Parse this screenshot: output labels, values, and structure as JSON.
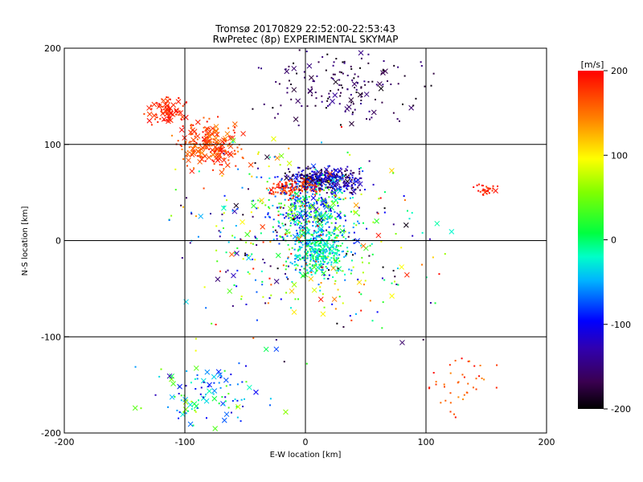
{
  "chart_data": {
    "type": "scatter",
    "title": "Tromsø 20170829 22:52:00-22:53:43",
    "subtitle": "RwPretec (8p) EXPERIMENTAL SKYMAP",
    "xlabel": "E-W location [km]",
    "ylabel": "N-S location [km]",
    "xlim": [
      -200,
      200
    ],
    "ylim": [
      -200,
      200
    ],
    "xticks": [
      "-200",
      "-100",
      "0",
      "100",
      "200"
    ],
    "yticks": [
      "-200",
      "-100",
      "0",
      "100",
      "200"
    ],
    "grid": true,
    "marker_types": [
      "small dot",
      "cross"
    ],
    "colorbar": {
      "label": "[m/s]",
      "range": [
        -200,
        200
      ],
      "ticks": [
        "200",
        "100",
        "0",
        "-100",
        "-200"
      ],
      "colormap": "rainbow (black-purple-blue-cyan-green-yellow-orange-red)"
    },
    "clusters": [
      {
        "center": [
          15,
          63
        ],
        "spread": [
          25,
          10
        ],
        "count": 420,
        "vmin": -200,
        "vmax": -80,
        "cross_fraction": 0.08
      },
      {
        "center": [
          -10,
          55
        ],
        "spread": [
          15,
          8
        ],
        "count": 120,
        "vmin": 150,
        "vmax": 200,
        "cross_fraction": 0.05
      },
      {
        "center": [
          5,
          30
        ],
        "spread": [
          30,
          25
        ],
        "count": 380,
        "vmin": -130,
        "vmax": 60,
        "cross_fraction": 0.06
      },
      {
        "center": [
          10,
          -10
        ],
        "spread": [
          20,
          20
        ],
        "count": 360,
        "vmin": -70,
        "vmax": 30,
        "cross_fraction": 0.07
      },
      {
        "center": [
          -80,
          100
        ],
        "spread": [
          22,
          20
        ],
        "count": 220,
        "vmin": 140,
        "vmax": 200,
        "cross_fraction": 0.3
      },
      {
        "center": [
          -115,
          135
        ],
        "spread": [
          12,
          12
        ],
        "count": 90,
        "vmin": 170,
        "vmax": 200,
        "cross_fraction": 0.35
      },
      {
        "center": [
          30,
          160
        ],
        "spread": [
          50,
          30
        ],
        "count": 160,
        "vmin": -200,
        "vmax": -140,
        "cross_fraction": 0.12
      },
      {
        "center": [
          -80,
          -160
        ],
        "spread": [
          40,
          25
        ],
        "count": 110,
        "vmin": -130,
        "vmax": 80,
        "cross_fraction": 0.35
      },
      {
        "center": [
          150,
          53
        ],
        "spread": [
          8,
          5
        ],
        "count": 30,
        "vmin": 170,
        "vmax": 200,
        "cross_fraction": 0.1
      },
      {
        "center": [
          130,
          -150
        ],
        "spread": [
          25,
          30
        ],
        "count": 40,
        "vmin": 140,
        "vmax": 200,
        "cross_fraction": 0.05
      },
      {
        "center": [
          0,
          0
        ],
        "spread": [
          80,
          80
        ],
        "count": 420,
        "vmin": -200,
        "vmax": 200,
        "cross_fraction": 0.18
      }
    ]
  }
}
